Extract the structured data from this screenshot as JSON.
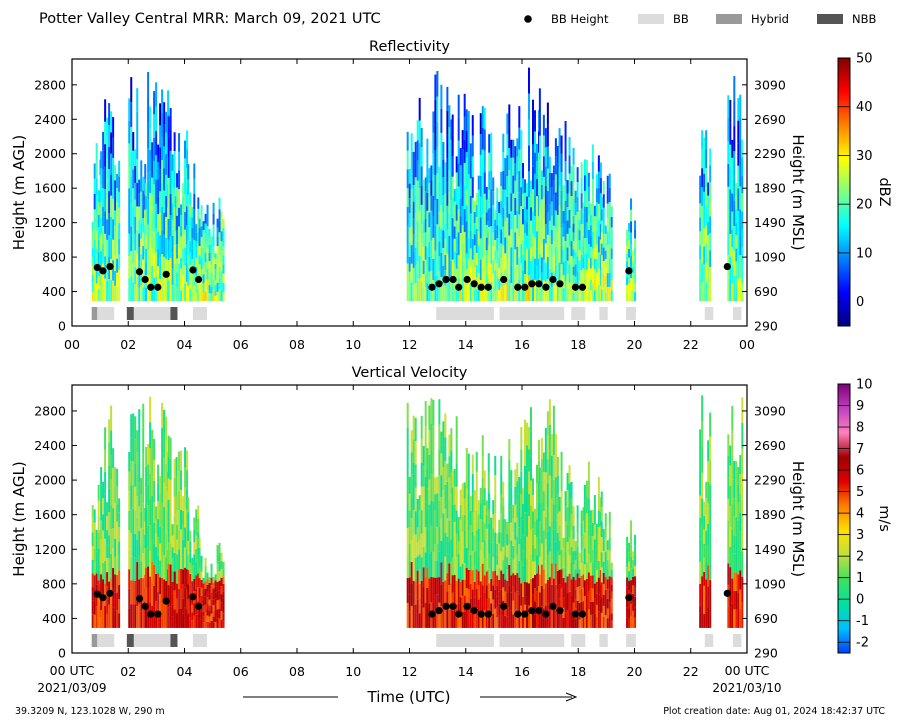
{
  "header": {
    "title": "Potter Valley Central MRR:  March 09, 2021 UTC"
  },
  "legend": {
    "items": [
      {
        "label": "BB Height",
        "symbol": "dot",
        "color": "#000000"
      },
      {
        "label": "BB",
        "symbol": "box",
        "color": "#dcdcdc"
      },
      {
        "label": "Hybrid",
        "symbol": "box",
        "color": "#999999"
      },
      {
        "label": "NBB",
        "symbol": "box",
        "color": "#555555"
      }
    ]
  },
  "footer": {
    "xlabel": "Time (UTC)",
    "start_tick": "00 UTC",
    "end_tick": "00 UTC",
    "start_date": "2021/03/09",
    "end_date": "2021/03/10",
    "location": "39.3209 N, 123.1028 W, 290 m",
    "creation": "Plot creation date: Aug 01, 2024 18:42:37 UTC"
  },
  "chart_data": [
    {
      "type": "heatmap",
      "title": "Reflectivity",
      "ylabel": "Height (m AGL)",
      "ylabel_right": "Height (m MSL)",
      "colorbar_label": "dBZ",
      "colorbar_ticks": [
        "50",
        "40",
        "30",
        "20",
        "10",
        "0"
      ],
      "colorbar_range": [
        -5,
        50
      ],
      "colormap": [
        "#00007f",
        "#0000ff",
        "#0080ff",
        "#00ffff",
        "#80ff80",
        "#ffff00",
        "#ff8000",
        "#ff0000",
        "#7f0000"
      ],
      "xlim": [
        0,
        24
      ],
      "ylim": [
        0,
        3100
      ],
      "x_tick_labels": [
        "00",
        "02",
        "04",
        "06",
        "08",
        "10",
        "12",
        "14",
        "16",
        "18",
        "20",
        "22",
        "00"
      ],
      "y_tick_labels": [
        "2800",
        "2400",
        "2000",
        "1600",
        "1200",
        "800",
        "400",
        "0"
      ],
      "y_right_tick_labels": [
        "3090",
        "2690",
        "2290",
        "1890",
        "1490",
        "1090",
        "690",
        "290"
      ],
      "echo_columns": [
        [
          0.7,
          1.1,
          2200
        ],
        [
          1.0,
          1.7,
          2900
        ],
        [
          2.0,
          2.6,
          3000
        ],
        [
          2.6,
          3.4,
          3000
        ],
        [
          3.4,
          3.7,
          2600
        ],
        [
          3.7,
          4.1,
          2500
        ],
        [
          4.1,
          4.5,
          2000
        ],
        [
          4.5,
          5.4,
          1500
        ],
        [
          11.9,
          12.6,
          3000
        ],
        [
          12.6,
          13.5,
          3000
        ],
        [
          13.5,
          14.0,
          2800
        ],
        [
          14.0,
          14.8,
          2600
        ],
        [
          14.8,
          15.3,
          2400
        ],
        [
          15.3,
          16.0,
          2700
        ],
        [
          16.0,
          16.6,
          3000
        ],
        [
          16.6,
          17.3,
          3000
        ],
        [
          17.3,
          17.8,
          2400
        ],
        [
          17.8,
          18.2,
          2000
        ],
        [
          18.2,
          18.8,
          2300
        ],
        [
          18.8,
          19.2,
          1900
        ],
        [
          19.7,
          20.0,
          1600
        ],
        [
          22.3,
          22.7,
          3000
        ],
        [
          23.3,
          23.8,
          3000
        ]
      ],
      "bb_height_time": [
        0.9,
        1.1,
        1.35,
        2.4,
        2.6,
        2.8,
        3.05,
        3.35,
        4.3,
        4.5,
        12.8,
        13.05,
        13.3,
        13.55,
        13.75,
        14.05,
        14.3,
        14.55,
        14.8,
        15.35,
        15.85,
        16.1,
        16.35,
        16.6,
        16.85,
        17.1,
        17.35,
        17.9,
        18.15,
        19.8,
        23.3
      ],
      "bb_height_m": [
        680,
        640,
        690,
        630,
        540,
        450,
        450,
        600,
        650,
        540,
        450,
        490,
        540,
        540,
        450,
        540,
        490,
        450,
        450,
        540,
        450,
        450,
        490,
        490,
        450,
        540,
        490,
        450,
        450,
        640,
        690
      ],
      "bb_type_bars": [
        [
          0.7,
          0.9,
          "Hybrid"
        ],
        [
          0.9,
          1.5,
          "BB"
        ],
        [
          1.95,
          2.2,
          "NBB"
        ],
        [
          2.2,
          3.5,
          "BB"
        ],
        [
          3.5,
          3.75,
          "NBB"
        ],
        [
          4.3,
          4.8,
          "BB"
        ],
        [
          12.95,
          15.0,
          "BB"
        ],
        [
          15.2,
          17.5,
          "BB"
        ],
        [
          17.75,
          18.25,
          "BB"
        ],
        [
          18.75,
          19.05,
          "BB"
        ],
        [
          19.7,
          20.05,
          "BB"
        ],
        [
          22.5,
          22.8,
          "BB"
        ],
        [
          23.5,
          23.8,
          "BB"
        ]
      ]
    },
    {
      "type": "heatmap",
      "title": "Vertical Velocity",
      "ylabel": "Height (m AGL)",
      "ylabel_right": "Height (m MSL)",
      "colorbar_label": "m/s",
      "colorbar_ticks": [
        "10",
        "9",
        "8",
        "7",
        "6",
        "5",
        "4",
        "3",
        "2",
        "1",
        "0",
        "-1",
        "-2"
      ],
      "colorbar_range": [
        -2.5,
        10
      ],
      "colormap": [
        "#0040ff",
        "#00c0ff",
        "#00e0a0",
        "#40e060",
        "#c0e040",
        "#ffe000",
        "#ff8000",
        "#e00000",
        "#a00000",
        "#ff80c0",
        "#c040c0",
        "#800080"
      ],
      "xlim": [
        0,
        24
      ],
      "ylim": [
        0,
        3100
      ],
      "x_tick_labels": [
        "",
        "02",
        "04",
        "06",
        "08",
        "10",
        "12",
        "14",
        "16",
        "18",
        "20",
        "22",
        ""
      ],
      "y_tick_labels": [
        "2800",
        "2400",
        "2000",
        "1600",
        "1200",
        "800",
        "400",
        "0"
      ],
      "y_right_tick_labels": [
        "3090",
        "2690",
        "2290",
        "1890",
        "1490",
        "1090",
        "690",
        "290"
      ],
      "echo_columns": [
        [
          0.7,
          1.1,
          2200
        ],
        [
          1.0,
          1.7,
          2900
        ],
        [
          2.0,
          2.6,
          3000
        ],
        [
          2.6,
          3.4,
          3000
        ],
        [
          3.4,
          3.7,
          2600
        ],
        [
          3.7,
          4.1,
          2500
        ],
        [
          4.1,
          4.5,
          2000
        ],
        [
          4.5,
          5.4,
          1500
        ],
        [
          11.9,
          12.6,
          3000
        ],
        [
          12.6,
          13.5,
          3000
        ],
        [
          13.5,
          14.0,
          2800
        ],
        [
          14.0,
          14.8,
          2600
        ],
        [
          14.8,
          15.3,
          2400
        ],
        [
          15.3,
          16.0,
          2700
        ],
        [
          16.0,
          16.6,
          3000
        ],
        [
          16.6,
          17.3,
          3000
        ],
        [
          17.3,
          17.8,
          2400
        ],
        [
          17.8,
          18.2,
          2000
        ],
        [
          18.2,
          18.8,
          2300
        ],
        [
          18.8,
          19.2,
          1900
        ],
        [
          19.7,
          20.0,
          1600
        ],
        [
          22.3,
          22.7,
          3000
        ],
        [
          23.3,
          23.8,
          3000
        ]
      ],
      "bb_height_time": [
        0.9,
        1.1,
        1.35,
        2.4,
        2.6,
        2.8,
        3.05,
        3.35,
        4.3,
        4.5,
        12.8,
        13.05,
        13.3,
        13.55,
        13.75,
        14.05,
        14.3,
        14.55,
        14.8,
        15.35,
        15.85,
        16.1,
        16.35,
        16.6,
        16.85,
        17.1,
        17.35,
        17.9,
        18.15,
        19.8,
        23.3
      ],
      "bb_height_m": [
        680,
        640,
        690,
        630,
        540,
        450,
        450,
        600,
        650,
        540,
        450,
        490,
        540,
        540,
        450,
        540,
        490,
        450,
        450,
        540,
        450,
        450,
        490,
        490,
        450,
        540,
        490,
        450,
        450,
        640,
        690
      ],
      "bb_type_bars": [
        [
          0.7,
          0.9,
          "Hybrid"
        ],
        [
          0.9,
          1.5,
          "BB"
        ],
        [
          1.95,
          2.2,
          "NBB"
        ],
        [
          2.2,
          3.5,
          "BB"
        ],
        [
          3.5,
          3.75,
          "NBB"
        ],
        [
          4.3,
          4.8,
          "BB"
        ],
        [
          12.95,
          15.0,
          "BB"
        ],
        [
          15.2,
          17.5,
          "BB"
        ],
        [
          17.75,
          18.25,
          "BB"
        ],
        [
          18.75,
          19.05,
          "BB"
        ],
        [
          19.7,
          20.05,
          "BB"
        ],
        [
          22.5,
          22.8,
          "BB"
        ],
        [
          23.5,
          23.8,
          "BB"
        ]
      ]
    }
  ]
}
